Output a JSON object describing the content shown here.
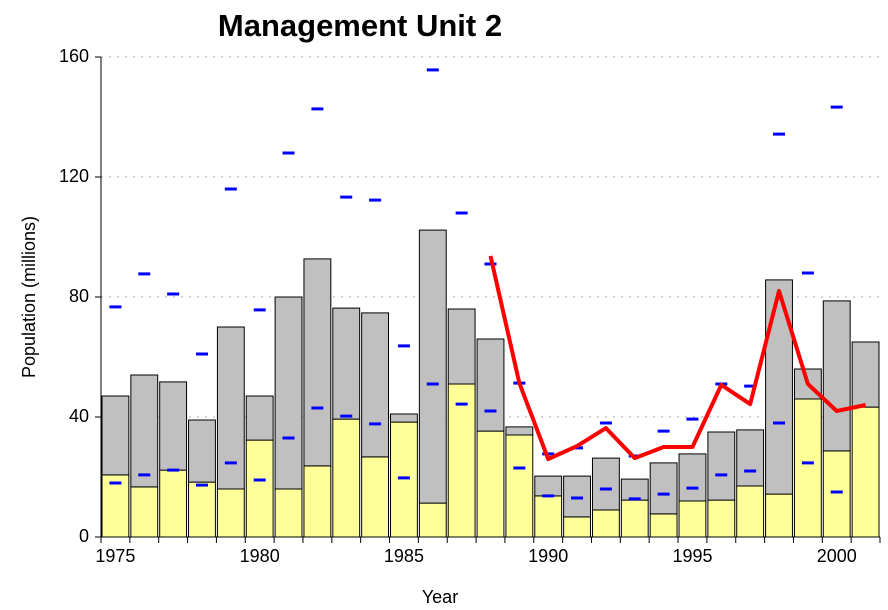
{
  "chart_data": {
    "type": "bar",
    "stacked": true,
    "title": "Management Unit 2",
    "x_label": "Year",
    "y_label": "Population (millions)",
    "categories": [
      "1975",
      null,
      null,
      null,
      null,
      "1980",
      null,
      null,
      null,
      null,
      "1985",
      null,
      null,
      null,
      null,
      "1990",
      null,
      null,
      null,
      null,
      "1995",
      null,
      null,
      null,
      null,
      "2000",
      null
    ],
    "ylim": [
      0,
      160
    ],
    "yticks": [
      0,
      40,
      80,
      120,
      160
    ],
    "grid": true,
    "series": [
      {
        "type": "bar",
        "color": "#ffff99",
        "values": [
          20.7,
          16.7,
          22.3,
          18.3,
          16,
          32.3,
          16,
          23.7,
          39.3,
          26.7,
          38.3,
          11.3,
          51,
          35.3,
          34,
          13.7,
          6.7,
          9,
          12.3,
          7.7,
          12,
          12.3,
          17,
          14.3,
          46,
          28.7,
          43.3
        ]
      },
      {
        "type": "bar",
        "color": "#c0c0c0",
        "values": [
          26.3,
          37.3,
          29.4,
          20.7,
          54,
          14.7,
          64,
          69,
          37,
          48,
          2.7,
          91,
          25,
          30.7,
          2.7,
          6.6,
          13.6,
          17.3,
          7,
          17,
          15.7,
          22.7,
          18.7,
          71.4,
          10,
          50,
          21.7
        ]
      },
      {
        "type": "marker",
        "color": "#0000ff",
        "values": [
          76.7,
          87.7,
          81,
          61,
          116,
          75.7,
          128,
          142.7,
          113.3,
          112.3,
          63.7,
          155.7,
          108,
          91,
          51.3,
          27.7,
          29.7,
          38,
          27,
          35.3,
          39.3,
          51,
          50.3,
          134.3,
          88,
          143.3,
          null
        ]
      },
      {
        "type": "marker",
        "color": "#0000ff",
        "values": [
          18,
          20.7,
          22.3,
          17.3,
          24.7,
          19,
          33,
          43,
          40.3,
          37.7,
          19.7,
          51,
          44.3,
          42,
          23,
          13.7,
          13,
          16,
          12.7,
          14.3,
          16.3,
          20.7,
          22,
          38,
          24.7,
          15,
          null
        ]
      },
      {
        "type": "line",
        "color": "#ff0000",
        "values": [
          null,
          null,
          null,
          null,
          null,
          null,
          null,
          null,
          null,
          null,
          null,
          null,
          null,
          93.7,
          51.3,
          26,
          30.3,
          36.3,
          26.3,
          30,
          30,
          50.7,
          44.3,
          82,
          51,
          42,
          44
        ]
      }
    ]
  }
}
